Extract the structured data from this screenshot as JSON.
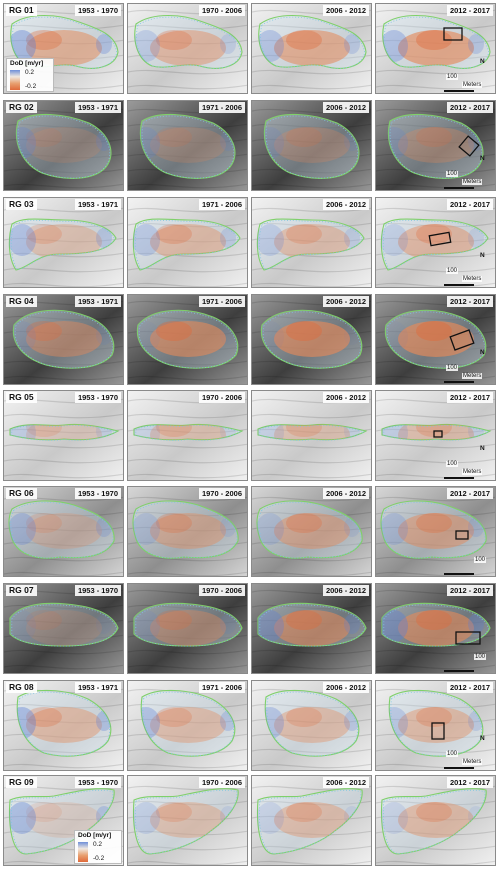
{
  "legend": {
    "title": "DoD [m/yr]",
    "high": "0.2",
    "low": "-0.2",
    "colors": [
      "#5b7fd6",
      "#f2ece6",
      "#e58a5a"
    ]
  },
  "scale": {
    "north": "N",
    "value": "100",
    "unit": "Meters"
  },
  "rows": [
    {
      "label": "RG 01",
      "periods": [
        "1953 - 1970",
        "1970 - 2006",
        "2006 - 2012",
        "2012 - 2017"
      ],
      "style": "light",
      "scale_show": "both"
    },
    {
      "label": "RG 02",
      "periods": [
        "1953 - 1971",
        "1971 - 2006",
        "2006 - 2012",
        "2012 - 2017"
      ],
      "style": "dark",
      "scale_show": "both"
    },
    {
      "label": "RG 03",
      "periods": [
        "1953 - 1971",
        "1971 - 2006",
        "2006 - 2012",
        "2012 - 2017"
      ],
      "style": "light",
      "scale_show": "both"
    },
    {
      "label": "RG 04",
      "periods": [
        "1953 - 1971",
        "1971 - 2006",
        "2006 - 2012",
        "2012 - 2017"
      ],
      "style": "dark",
      "scale_show": "both"
    },
    {
      "label": "RG 05",
      "periods": [
        "1953 - 1970",
        "1970 - 2006",
        "2006 - 2012",
        "2012 - 2017"
      ],
      "style": "light",
      "scale_show": "both"
    },
    {
      "label": "RG 06",
      "periods": [
        "1953 - 1970",
        "1970 - 2006",
        "2006 - 2012",
        "2012 - 2017"
      ],
      "style": "mid",
      "scale_show": "value"
    },
    {
      "label": "RG 07",
      "periods": [
        "1953 - 1970",
        "1970 - 2006",
        "2006 - 2012",
        "2012 - 2017"
      ],
      "style": "dark",
      "scale_show": "value"
    },
    {
      "label": "RG 08",
      "periods": [
        "1953 - 1971",
        "1971 - 2006",
        "2006 - 2012",
        "2012 - 2017"
      ],
      "style": "light",
      "scale_show": "both"
    },
    {
      "label": "RG 09",
      "periods": [
        "1953 - 1970",
        "1970 - 2006",
        "2006 - 2012",
        "2012 - 2017"
      ],
      "style": "light",
      "scale_show": "none"
    }
  ]
}
